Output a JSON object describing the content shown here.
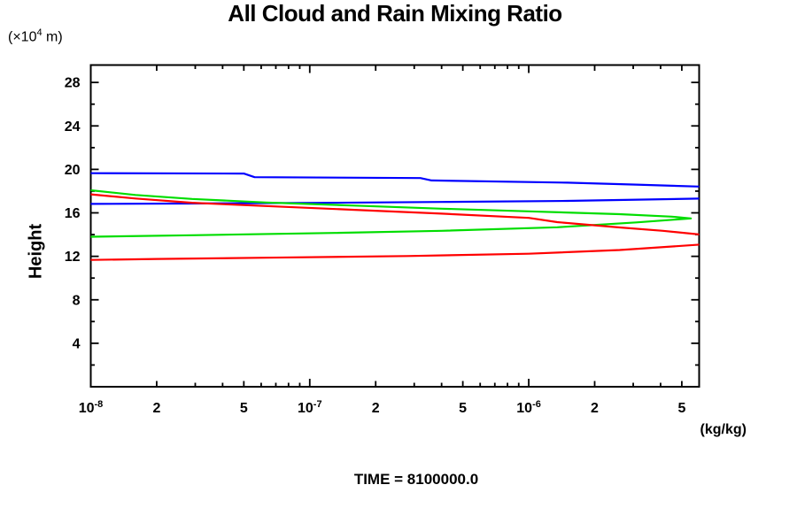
{
  "title": "All Cloud and Rain Mixing Ratio",
  "y_axis_unit": {
    "prefix": "(×10",
    "exponent": "4",
    "suffix": " m)"
  },
  "ylabel": "Height",
  "x_unit": "(kg/kg)",
  "time_label": "TIME = 8100000.0",
  "chart_data": {
    "type": "line",
    "title": "All Cloud and Rain Mixing Ratio",
    "xlabel": "(kg/kg)",
    "ylabel": "Height (×10^4 m)",
    "x_scale": "log",
    "xlim": [
      1e-08,
      6e-06
    ],
    "ylim": [
      0,
      29.6
    ],
    "grid": false,
    "legend": false,
    "caption": "TIME = 8100000.0",
    "x_major_ticks": [
      {
        "value": 1e-08,
        "base": "10",
        "exp": "-8"
      },
      {
        "value": 1e-07,
        "base": "10",
        "exp": "-7"
      },
      {
        "value": 1e-06,
        "base": "10",
        "exp": "-6"
      }
    ],
    "x_labeled_minor_ticks": [
      {
        "value": 2e-08,
        "label": "2"
      },
      {
        "value": 5e-08,
        "label": "5"
      },
      {
        "value": 2e-07,
        "label": "2"
      },
      {
        "value": 5e-07,
        "label": "5"
      },
      {
        "value": 2e-06,
        "label": "2"
      },
      {
        "value": 5e-06,
        "label": "5"
      }
    ],
    "x_minor_ticks": [
      3e-08,
      4e-08,
      6e-08,
      7e-08,
      8e-08,
      9e-08,
      3e-07,
      4e-07,
      6e-07,
      7e-07,
      8e-07,
      9e-07,
      3e-06,
      4e-06
    ],
    "y_major_ticks": [
      {
        "value": 4,
        "label": "4"
      },
      {
        "value": 8,
        "label": "8"
      },
      {
        "value": 12,
        "label": "12"
      },
      {
        "value": 16,
        "label": "16"
      },
      {
        "value": 20,
        "label": "20"
      },
      {
        "value": 24,
        "label": "24"
      },
      {
        "value": 28,
        "label": "28"
      }
    ],
    "y_minor_ticks": [
      2,
      6,
      10,
      14,
      18,
      22,
      26
    ],
    "series": [
      {
        "name": "blue-profile",
        "color": "#0000ff",
        "points": [
          [
            1e-08,
            19.65
          ],
          [
            5e-08,
            19.62
          ],
          [
            5.6e-08,
            19.28
          ],
          [
            3.2e-07,
            19.2
          ],
          [
            3.6e-07,
            18.98
          ],
          [
            1.5e-06,
            18.78
          ],
          [
            3.1e-06,
            18.6
          ],
          [
            6.3e-06,
            18.4
          ],
          [
            9e-06,
            17.85
          ],
          [
            6.3e-06,
            17.32
          ],
          [
            1.5e-06,
            17.1
          ],
          [
            4e-07,
            17.0
          ],
          [
            1.1e-07,
            16.92
          ],
          [
            2.5e-08,
            16.86
          ],
          [
            1e-08,
            16.82
          ]
        ]
      },
      {
        "name": "green-profile",
        "color": "#00dd00",
        "points": [
          [
            1e-08,
            18.08
          ],
          [
            1.6e-08,
            17.65
          ],
          [
            2.9e-08,
            17.28
          ],
          [
            6.3e-08,
            16.95
          ],
          [
            1.6e-07,
            16.67
          ],
          [
            4e-07,
            16.38
          ],
          [
            1e-06,
            16.14
          ],
          [
            2.6e-06,
            15.88
          ],
          [
            4.5e-06,
            15.65
          ],
          [
            5.5e-06,
            15.49
          ],
          [
            3.1e-06,
            15.12
          ],
          [
            1.35e-06,
            14.67
          ],
          [
            4e-07,
            14.35
          ],
          [
            1.3e-07,
            14.15
          ],
          [
            2.9e-08,
            13.94
          ],
          [
            1e-08,
            13.8
          ]
        ]
      },
      {
        "name": "red-profile",
        "color": "#ff0000",
        "points": [
          [
            1e-08,
            17.7
          ],
          [
            1.6e-08,
            17.32
          ],
          [
            2.9e-08,
            16.93
          ],
          [
            6.3e-08,
            16.63
          ],
          [
            1.6e-07,
            16.28
          ],
          [
            4e-07,
            15.93
          ],
          [
            1e-06,
            15.54
          ],
          [
            1.35e-06,
            15.15
          ],
          [
            2.6e-06,
            14.66
          ],
          [
            4.1e-06,
            14.35
          ],
          [
            6.3e-06,
            13.97
          ],
          [
            7.5e-06,
            13.55
          ],
          [
            6.3e-06,
            13.1
          ],
          [
            2.6e-06,
            12.58
          ],
          [
            1e-06,
            12.24
          ],
          [
            2.8e-07,
            12.03
          ],
          [
            6.3e-08,
            11.87
          ],
          [
            2e-08,
            11.76
          ],
          [
            1e-08,
            11.67
          ]
        ]
      }
    ]
  }
}
